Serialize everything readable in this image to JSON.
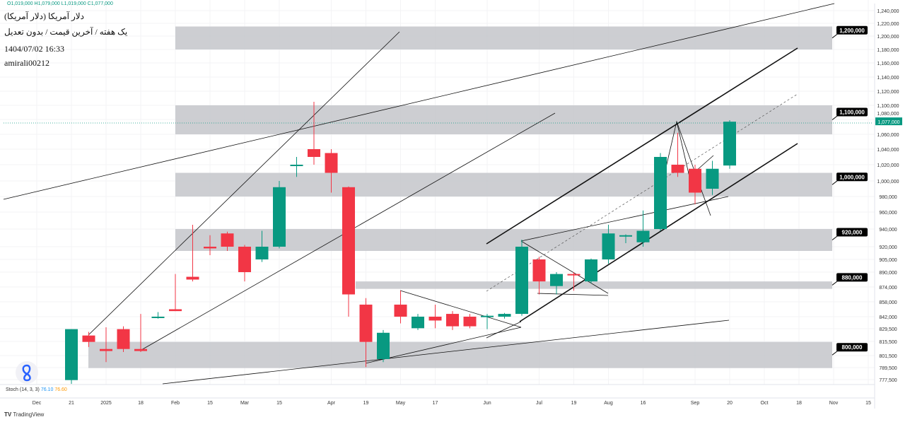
{
  "header": {
    "ohlc": "O1,019,000 H1,079,000 L1,019,000 C1,077,000",
    "title": "دلار آمریکا (دلار آمریکا)",
    "subtitle": "یک هفته / آخرین قیمت / بدون تعدیل",
    "datetime": "1404/07/02 16:33",
    "author": "amirali00212"
  },
  "indicator": {
    "name": "Stoch",
    "params": "(14, 3, 3)",
    "k": "76.10",
    "d": "76.60"
  },
  "watermark": "TradingView",
  "colors": {
    "up": "#089981",
    "down": "#f23645",
    "zone": "#c4c5ca"
  },
  "chart_data": {
    "type": "candlestick",
    "current_price": "1,077,000",
    "y_ticks": [
      [
        "1,240,000",
        15
      ],
      [
        "1,220,000",
        33
      ],
      [
        "1,200,000",
        51
      ],
      [
        "1,180,000",
        70
      ],
      [
        "1,160,000",
        89
      ],
      [
        "1,140,000",
        109
      ],
      [
        "1,120,000",
        129
      ],
      [
        "1,100,000",
        149
      ],
      [
        "1,080,000",
        169
      ],
      [
        "1,060,000",
        190
      ],
      [
        "1,040,000",
        211
      ],
      [
        "1,020,000",
        233
      ],
      [
        "1,000,000",
        256
      ],
      [
        "980,000",
        278
      ],
      [
        "960,000",
        300
      ],
      [
        "940,000",
        324
      ],
      [
        "920,000",
        349
      ],
      [
        "905,000",
        367
      ],
      [
        "890,000",
        385
      ],
      [
        "874,000",
        406
      ],
      [
        "858,000",
        427
      ],
      [
        "842,000",
        448
      ],
      [
        "829,500",
        465
      ],
      [
        "815,500",
        483
      ],
      [
        "801,500",
        503
      ],
      [
        "789,500",
        520
      ],
      [
        "777,500",
        537
      ]
    ],
    "x_labels": [
      "Dec",
      "21",
      "2025",
      "18",
      "Feb",
      "15",
      "Mar",
      "15",
      "Apr",
      "19",
      "May",
      "17",
      "Jun",
      "Jul",
      "19",
      "Aug",
      "16",
      "Sep",
      "20",
      "Oct",
      "18",
      "Nov",
      "15"
    ],
    "x_label_week": [
      -2,
      0,
      2,
      4,
      6,
      8,
      10,
      12,
      15,
      17,
      19,
      21,
      24,
      27,
      29,
      31,
      33,
      36,
      38,
      40,
      42,
      44,
      46
    ],
    "zones": [
      {
        "label": "1,200,000",
        "lo": 1180000,
        "hi": 1215000
      },
      {
        "label": "1,100,000",
        "lo": 1060000,
        "hi": 1100000
      },
      {
        "label": "1,000,000",
        "lo": 980000,
        "hi": 1010000
      },
      {
        "label": "920,000",
        "lo": 915000,
        "hi": 940000
      },
      {
        "label": "880,000",
        "lo": 872000,
        "hi": 880000
      },
      {
        "label": "800,000",
        "lo": 789000,
        "hi": 815000
      }
    ],
    "candles": [
      [
        777,
        829,
        829,
        770
      ],
      [
        822,
        826,
        815,
        810
      ],
      [
        808,
        831,
        806,
        795
      ],
      [
        829,
        832,
        808,
        805
      ],
      [
        808,
        845,
        806,
        805
      ],
      [
        842,
        847,
        842,
        840
      ],
      [
        850,
        888,
        848,
        848
      ],
      [
        885,
        945,
        882,
        880
      ],
      [
        920,
        933,
        918,
        910
      ],
      [
        935,
        937,
        920,
        915
      ],
      [
        920,
        922,
        890,
        880
      ],
      [
        905,
        938,
        920,
        902
      ],
      [
        920,
        1000,
        992,
        918
      ],
      [
        1020,
        1030,
        1020,
        1005
      ],
      [
        1040,
        1105,
        1030,
        1020
      ],
      [
        1035,
        1040,
        1010,
        985
      ],
      [
        992,
        993,
        866,
        842
      ],
      [
        855,
        862,
        815,
        790
      ],
      [
        798,
        828,
        825,
        795
      ],
      [
        855,
        870,
        842,
        835
      ],
      [
        830,
        845,
        842,
        828
      ],
      [
        842,
        855,
        838,
        830
      ],
      [
        845,
        848,
        832,
        828
      ],
      [
        842,
        845,
        832,
        830
      ],
      [
        843,
        845,
        843,
        829
      ],
      [
        842,
        846,
        845,
        840
      ],
      [
        845,
        928,
        920,
        843
      ],
      [
        905,
        908,
        880,
        866
      ],
      [
        875,
        890,
        888,
        866
      ],
      [
        888,
        890,
        887,
        870
      ],
      [
        880,
        906,
        905,
        878
      ],
      [
        905,
        945,
        935,
        900
      ],
      [
        933,
        934,
        933,
        924
      ],
      [
        925,
        962,
        938,
        920
      ],
      [
        940,
        1035,
        1030,
        938
      ],
      [
        1020,
        1062,
        1010,
        1005
      ],
      [
        1015,
        1020,
        985,
        970
      ],
      [
        990,
        1025,
        1015,
        982
      ],
      [
        1019,
        1079,
        1077,
        1015
      ]
    ]
  }
}
